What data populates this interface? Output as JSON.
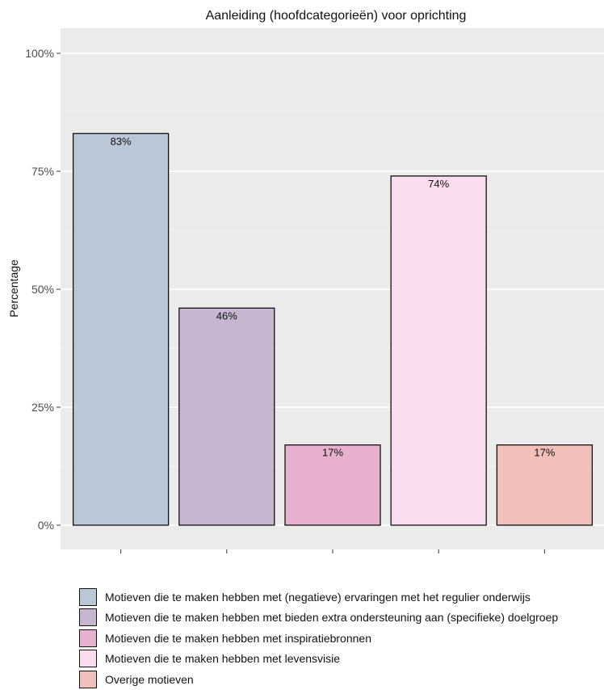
{
  "chart_data": {
    "type": "bar",
    "title": "Aanleiding (hoofdcategorieën) voor oprichting",
    "xlabel": "",
    "ylabel": "Percentage",
    "ylim": [
      0,
      1.05
    ],
    "yticks": [
      0,
      0.25,
      0.5,
      0.75,
      1.0
    ],
    "ytick_labels": [
      "0%",
      "25%",
      "50%",
      "75%",
      "100%"
    ],
    "grid": true,
    "legend_position": "bottom",
    "categories": [
      "Motieven die te maken hebben met (negatieve) ervaringen met het regulier onderwijs",
      "Motieven die te maken hebben met bieden extra ondersteuning aan (specifieke) doelgroep",
      "Motieven die te maken hebben met inspiratiebronnen",
      "Motieven die te maken hebben met levensvisie",
      "Overige motieven"
    ],
    "values": [
      0.83,
      0.46,
      0.17,
      0.74,
      0.17
    ],
    "data_labels": [
      "83%",
      "46%",
      "17%",
      "74%",
      "17%"
    ],
    "colors": [
      "#b9c7d7",
      "#c7b6d0",
      "#e6b0ce",
      "#fadcef",
      "#f2c0bb"
    ],
    "panel_background": "#ebebeb"
  }
}
